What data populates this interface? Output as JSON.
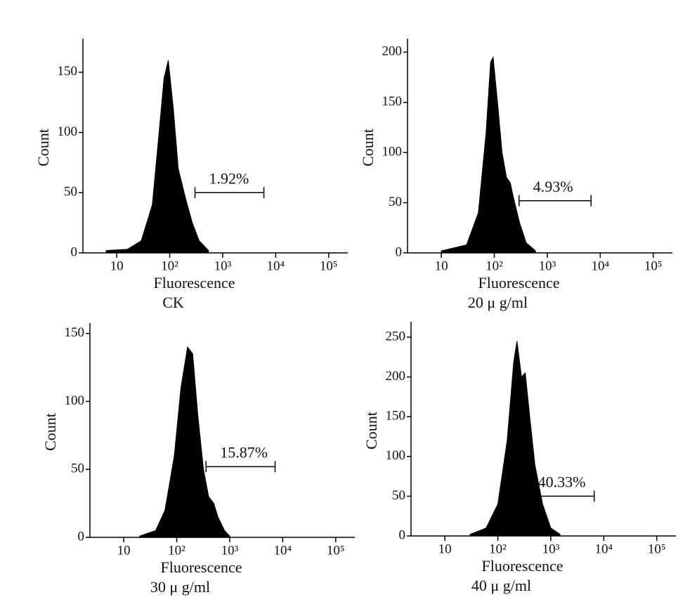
{
  "chart_data": [
    {
      "type": "area",
      "xlabel": "Fluorescence",
      "ylabel": "Count",
      "caption": "CK",
      "log_x": true,
      "color": "#000000",
      "x": [
        6.3,
        16,
        29,
        47,
        63,
        78,
        94,
        117,
        145,
        200,
        267,
        360,
        540
      ],
      "values": [
        2,
        3,
        10,
        40,
        100,
        145,
        160,
        120,
        70,
        45,
        25,
        10,
        2
      ],
      "xlim": [
        2.3,
        230000
      ],
      "ylim": [
        0,
        175
      ],
      "xticks": [
        10,
        {
          "value": 100,
          "label": "10²"
        },
        {
          "value": 1000,
          "label": "10³"
        },
        {
          "value": 10000,
          "label": "10⁴"
        },
        {
          "value": 100000,
          "label": "10⁵"
        }
      ],
      "yticks": [
        0,
        50,
        100,
        150
      ],
      "gate": [
        300,
        6000
      ],
      "gate_y": 50,
      "gate_label": "1.92%"
    },
    {
      "type": "area",
      "xlabel": "Fluorescence",
      "ylabel": "Count",
      "caption": "20 μ g/ml",
      "log_x": true,
      "color": "#000000",
      "x": [
        10,
        30,
        50,
        70,
        85,
        95,
        115,
        140,
        170,
        200,
        230,
        300,
        400,
        600
      ],
      "values": [
        2,
        8,
        40,
        120,
        190,
        195,
        150,
        100,
        75,
        70,
        55,
        30,
        10,
        2
      ],
      "xlim": [
        2.3,
        230000
      ],
      "ylim": [
        0,
        210
      ],
      "xticks": [
        10,
        {
          "value": 100,
          "label": "10²"
        },
        {
          "value": 1000,
          "label": "10³"
        },
        {
          "value": 10000,
          "label": "10⁴"
        },
        {
          "value": 100000,
          "label": "10⁵"
        }
      ],
      "yticks": [
        0,
        50,
        100,
        150,
        200
      ],
      "gate": [
        293,
        6700
      ],
      "gate_y": 52,
      "gate_label": "4.93%"
    },
    {
      "type": "area",
      "xlabel": "Fluorescence",
      "ylabel": "Count",
      "caption": "30 μ g/ml",
      "log_x": true,
      "color": "#000000",
      "x": [
        20,
        40,
        60,
        90,
        120,
        160,
        200,
        250,
        320,
        400,
        500,
        600,
        800,
        1000
      ],
      "values": [
        1,
        5,
        20,
        60,
        110,
        140,
        135,
        90,
        50,
        30,
        25,
        15,
        5,
        1
      ],
      "xlim": [
        2.3,
        230000
      ],
      "ylim": [
        0,
        155
      ],
      "xticks": [
        10,
        {
          "value": 100,
          "label": "10²"
        },
        {
          "value": 1000,
          "label": "10³"
        },
        {
          "value": 10000,
          "label": "10⁴"
        },
        {
          "value": 100000,
          "label": "10⁵"
        }
      ],
      "yticks": [
        0,
        50,
        100,
        150
      ],
      "gate": [
        357,
        7200
      ],
      "gate_y": 52,
      "gate_label": "15.87%"
    },
    {
      "type": "area",
      "xlabel": "Fluorescence",
      "ylabel": "Count",
      "caption": "40 μ g/ml",
      "log_x": true,
      "color": "#000000",
      "x": [
        30,
        60,
        100,
        150,
        200,
        230,
        280,
        330,
        400,
        500,
        700,
        1000,
        1500
      ],
      "values": [
        2,
        10,
        40,
        120,
        220,
        245,
        200,
        205,
        150,
        90,
        40,
        10,
        2
      ],
      "xlim": [
        2.3,
        230000
      ],
      "ylim": [
        0,
        265
      ],
      "xticks": [
        10,
        {
          "value": 100,
          "label": "10²"
        },
        {
          "value": 1000,
          "label": "10³"
        },
        {
          "value": 10000,
          "label": "10⁴"
        },
        {
          "value": 100000,
          "label": "10⁵"
        }
      ],
      "yticks": [
        0,
        50,
        100,
        150,
        200,
        250
      ],
      "gate": [
        311,
        6600
      ],
      "gate_y": 50,
      "gate_label": "40.33%"
    }
  ]
}
